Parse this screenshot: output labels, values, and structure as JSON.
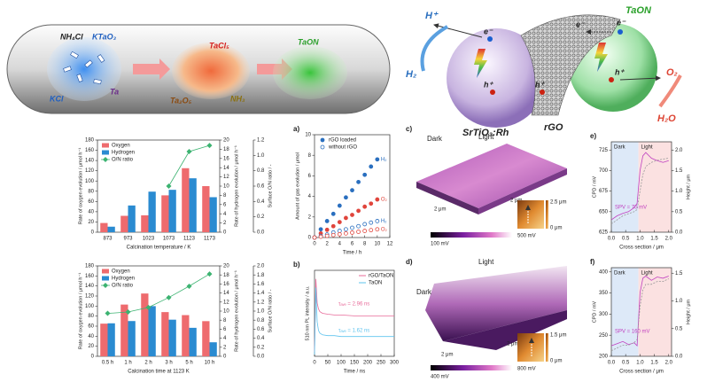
{
  "synthesis": {
    "precursor": [
      "NH₄Cl",
      "KTaO₃",
      "KCl",
      "Ta"
    ],
    "intermediate": [
      "TaCl₅",
      "Ta₂O₅",
      "NH₃"
    ],
    "product": "TaON"
  },
  "zscheme": {
    "proton": "H⁺",
    "hydrogen": "H₂",
    "electron": "e⁻",
    "hole": "h⁺",
    "photocatalyst_1": "SrTiO₃:Rh",
    "mediator": "rGO",
    "photocatalyst_2": "TaON",
    "oxygen": "O₂",
    "water": "H₂O"
  },
  "chart_data": [
    {
      "type": "bar",
      "xlabel": "Calcination temperature / K",
      "ylabel": "Rate of oxygen evolution / μmol h⁻¹",
      "y2label": "Rate of hydrogen evolution / μmol h⁻¹",
      "y3label": "Surface O/N ratio / -",
      "categories": [
        "873",
        "973",
        "1023",
        "1073",
        "1123",
        "1173"
      ],
      "series": [
        {
          "name": "Oxygen",
          "color": "#ee6b6e",
          "style": "bar",
          "values": [
            18,
            32,
            33,
            72,
            125,
            90
          ]
        },
        {
          "name": "Hydrogen",
          "color": "#2a8bd1",
          "style": "bar",
          "axis": "y2",
          "values": [
            1.2,
            5.8,
            8.8,
            9.2,
            11.7,
            7.6
          ]
        },
        {
          "name": "O/N ratio",
          "color": "#3cb371",
          "style": "marker-line",
          "marker": "diamond",
          "axis": "y3",
          "values": [
            null,
            null,
            null,
            0.6,
            1.05,
            1.13
          ]
        }
      ],
      "ylim": [
        0,
        180
      ],
      "yticks": [
        0,
        20,
        40,
        60,
        80,
        100,
        120,
        140,
        160,
        180
      ],
      "y2lim": [
        0,
        20
      ],
      "y2ticks": [
        0,
        2,
        4,
        6,
        8,
        10,
        12,
        14,
        16,
        18,
        20
      ],
      "y3lim": [
        0,
        1.2
      ],
      "y3ticks": [
        {
          "value": 0,
          "label": "0.0"
        },
        0.2,
        0.4,
        0.6,
        0.8,
        {
          "value": 1,
          "label": "1.0"
        },
        1.2
      ],
      "legend": "upper left"
    },
    {
      "type": "bar",
      "xlabel": "Calcination time at 1123 K",
      "ylabel": "Rate of oxygen evolution / μmol h⁻¹",
      "y2label": "Rate of hydrogen evolution / μmol h⁻¹",
      "y3label": "Surface O/N ratio / -",
      "categories": [
        "0.5 h",
        "1 h",
        "2 h",
        "3 h",
        "5 h",
        "10 h"
      ],
      "series": [
        {
          "name": "Oxygen",
          "color": "#ee6b6e",
          "style": "bar",
          "values": [
            65,
            103,
            125,
            88,
            82,
            70
          ]
        },
        {
          "name": "Hydrogen",
          "color": "#2a8bd1",
          "style": "bar",
          "axis": "y2",
          "values": [
            7.3,
            7.8,
            11.1,
            8.1,
            6.3,
            3.1
          ]
        },
        {
          "name": "O/N ratio",
          "color": "#3cb371",
          "style": "marker-line",
          "marker": "diamond",
          "axis": "y3",
          "values": [
            0.95,
            0.98,
            1.08,
            1.3,
            1.55,
            1.82
          ]
        }
      ],
      "ylim": [
        0,
        180
      ],
      "yticks": [
        0,
        20,
        40,
        60,
        80,
        100,
        120,
        140,
        160,
        180
      ],
      "y2lim": [
        0,
        20
      ],
      "y2ticks": [
        0,
        2,
        4,
        6,
        8,
        10,
        12,
        14,
        16,
        18,
        20
      ],
      "y3lim": [
        0,
        2
      ],
      "y3ticks": [
        {
          "value": 0,
          "label": "0.0"
        },
        0.2,
        0.4,
        0.6,
        0.8,
        {
          "value": 1,
          "label": "1.0"
        },
        1.2,
        1.4,
        1.6,
        1.8,
        {
          "value": 2,
          "label": "2.0"
        }
      ],
      "legend": "upper left"
    },
    {
      "type": "line",
      "label": "a)",
      "xlabel": "Time / h",
      "ylabel": "Amount of gas evolution / μmol",
      "x": [
        0,
        1,
        2,
        3,
        4,
        5,
        6,
        7,
        8,
        9,
        10
      ],
      "series": [
        {
          "name": "H₂",
          "color": "#2a6fbf",
          "marker": "filled",
          "values": [
            0,
            0.8,
            1.6,
            2.3,
            3.1,
            3.9,
            4.6,
            5.4,
            6.1,
            6.9,
            7.6
          ]
        },
        {
          "name": "O₂",
          "color": "#e0453c",
          "marker": "filled",
          "values": [
            0,
            0.4,
            0.75,
            1.1,
            1.5,
            1.9,
            2.2,
            2.6,
            3.0,
            3.3,
            3.7
          ]
        },
        {
          "name": "H₂",
          "color": "#2a6fbf",
          "marker": "open",
          "values": [
            0,
            0.15,
            0.3,
            0.5,
            0.65,
            0.8,
            0.95,
            1.1,
            1.3,
            1.45,
            1.6
          ]
        },
        {
          "name": "O₂",
          "color": "#e0453c",
          "marker": "open",
          "values": [
            0,
            0.08,
            0.16,
            0.24,
            0.32,
            0.4,
            0.48,
            0.56,
            0.64,
            0.72,
            0.8
          ]
        }
      ],
      "legend_entries": [
        {
          "label": "rGO loaded",
          "marker": "filled",
          "color": "#2a6fbf"
        },
        {
          "label": "without rGO",
          "marker": "open",
          "color": "#2a6fbf"
        }
      ],
      "legend": "upper left",
      "xlim": [
        0,
        12
      ],
      "xticks": [
        0,
        2,
        4,
        6,
        8,
        10,
        12
      ],
      "ylim": [
        0,
        10
      ],
      "yticks": [
        0,
        2,
        4,
        6,
        8,
        10
      ]
    },
    {
      "type": "line",
      "label": "b)",
      "xlabel": "Time / ns",
      "ylabel": "510 nm PL intensity / a.u.",
      "x": [
        0,
        5,
        10,
        15,
        20,
        30,
        50,
        75,
        100,
        150,
        200,
        250,
        300
      ],
      "series": [
        {
          "name": "rGO/TaON",
          "color": "#e86b9a",
          "values": [
            0.05,
            0.9,
            0.62,
            0.55,
            0.52,
            0.5,
            0.49,
            0.48,
            0.48,
            0.47,
            0.47,
            0.47,
            0.47
          ]
        },
        {
          "name": "TaON",
          "color": "#5ec3ee",
          "values": [
            0.02,
            0.8,
            0.4,
            0.3,
            0.27,
            0.25,
            0.24,
            0.24,
            0.23,
            0.23,
            0.23,
            0.23,
            0.23
          ]
        }
      ],
      "annotations": [
        "τₐᵥₑ = 2.96 ns",
        "τₐᵥₑ = 1.62 ns"
      ],
      "legend": "upper right",
      "xlim": [
        0,
        300
      ],
      "xticks": [
        0,
        50,
        100,
        150,
        200,
        250,
        300
      ],
      "ylim": [
        0,
        1
      ]
    },
    {
      "type": "line",
      "label": "e)",
      "xlabel": "Cross section / μm",
      "ylabel": "CPD / mV",
      "y2label": "Height / μm",
      "x": [
        0,
        0.2,
        0.4,
        0.6,
        0.8,
        0.9,
        1.0,
        1.1,
        1.2,
        1.4,
        1.6,
        1.8,
        2.0
      ],
      "series": [
        {
          "color": "#c040c0",
          "values": [
            640,
            645,
            648,
            650,
            655,
            660,
            700,
            718,
            722,
            715,
            712,
            710,
            712
          ]
        },
        {
          "color": "#999999",
          "linestyle": "dashed",
          "axis": "y2",
          "values": [
            0.2,
            0.3,
            0.4,
            0.45,
            0.5,
            0.55,
            1.0,
            1.4,
            1.6,
            1.7,
            1.75,
            1.78,
            1.8
          ]
        }
      ],
      "regions": [
        {
          "label": "Dark",
          "color": "#dde9f8"
        },
        {
          "label": "Light",
          "color": "#fbe1e1"
        }
      ],
      "annotations": [
        "SPV = 70 mV"
      ],
      "xlim": [
        0,
        2.1
      ],
      "xticks": [
        {
          "value": 0,
          "label": "0.0"
        },
        0.5,
        {
          "value": 1,
          "label": "1.0"
        },
        1.5,
        {
          "value": 2,
          "label": "2.0"
        }
      ],
      "ylim": [
        625,
        735
      ],
      "yticks": [
        625,
        650,
        675,
        700,
        725
      ],
      "y2lim": [
        0,
        2.2
      ],
      "y2ticks": [
        {
          "value": 0,
          "label": "0.0"
        },
        0.5,
        {
          "value": 1,
          "label": "1.0"
        },
        1.5,
        {
          "value": 2,
          "label": "2.0"
        }
      ]
    },
    {
      "type": "line",
      "label": "f)",
      "xlabel": "Cross section / μm",
      "ylabel": "CPD / mV",
      "y2label": "Height / μm",
      "x": [
        0,
        0.2,
        0.4,
        0.6,
        0.8,
        0.9,
        1.0,
        1.1,
        1.2,
        1.4,
        1.6,
        1.8,
        2.0
      ],
      "series": [
        {
          "color": "#c040c0",
          "values": [
            225,
            230,
            235,
            228,
            232,
            225,
            350,
            385,
            390,
            380,
            388,
            385,
            390
          ]
        },
        {
          "color": "#999999",
          "linestyle": "dashed",
          "axis": "y2",
          "values": [
            0.1,
            0.15,
            0.2,
            0.2,
            0.25,
            0.3,
            0.9,
            1.2,
            1.3,
            1.3,
            1.35,
            1.35,
            1.4
          ]
        }
      ],
      "regions": [
        {
          "label": "Dark",
          "color": "#dde9f8"
        },
        {
          "label": "Light",
          "color": "#fbe1e1"
        }
      ],
      "annotations": [
        "SPV = 160 mV"
      ],
      "xlim": [
        0,
        2.1
      ],
      "xticks": [
        {
          "value": 0,
          "label": "0.0"
        },
        0.5,
        {
          "value": 1,
          "label": "1.0"
        },
        1.5,
        {
          "value": 2,
          "label": "2.0"
        }
      ],
      "ylim": [
        200,
        410
      ],
      "yticks": [
        200,
        250,
        300,
        350,
        400
      ],
      "y2lim": [
        0,
        1.6
      ],
      "y2ticks": [
        {
          "value": 0,
          "label": "0.0"
        },
        0.5,
        {
          "value": 1,
          "label": "1.0"
        },
        1.5
      ]
    }
  ],
  "afm": [
    {
      "label": "c)",
      "dark": "Dark",
      "light": "Light",
      "scale_x": "2 μm",
      "scale_y": "2 μm",
      "cbar_min": "100 mV",
      "cbar_max": "500 mV",
      "height_max": "2.5 μm",
      "height_min": "0 μm"
    },
    {
      "label": "d)",
      "dark": "Dark",
      "light": "Light",
      "scale_x": "2 μm",
      "scale_y": "2 μm",
      "cbar_min": "400 mV",
      "cbar_max": "800 mV",
      "height_max": "1.5 μm",
      "height_min": "0 μm"
    }
  ]
}
